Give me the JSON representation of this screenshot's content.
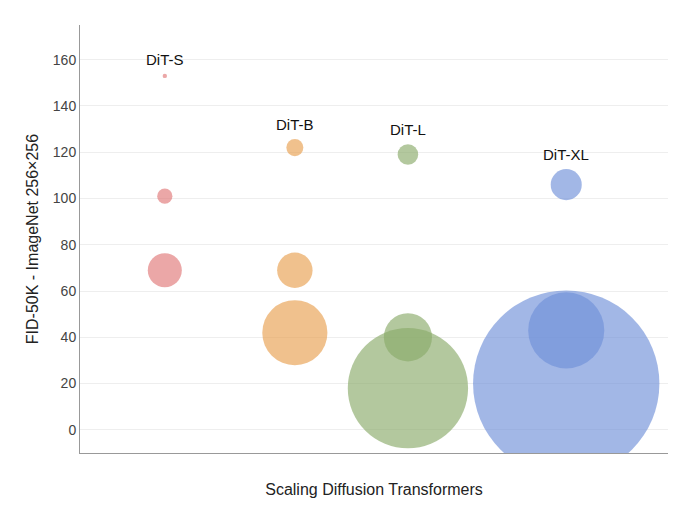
{
  "chart_data": {
    "type": "scatter",
    "xlabel": "Scaling Diffusion Transformers",
    "ylabel": "FID-50K - ImageNet 256×256",
    "xlim": [
      0.3,
      5.5
    ],
    "xticks": [],
    "ylim": [
      -10,
      175
    ],
    "yticks": [
      0,
      20,
      40,
      60,
      80,
      100,
      120,
      140,
      160
    ],
    "grid": true,
    "tick_labels": "y",
    "series": [
      {
        "name": "DiT-S",
        "color": "#e07878",
        "marker": "circle",
        "x": [
          1.05,
          1.05,
          1.05
        ],
        "values": [
          69,
          101,
          153
        ],
        "sizes": [
          600,
          120,
          10
        ]
      },
      {
        "name": "DiT-B",
        "color": "#e8a050",
        "marker": "circle",
        "x": [
          2.2,
          2.2,
          2.2
        ],
        "values": [
          42,
          69,
          122
        ],
        "sizes": [
          2200,
          650,
          150
        ]
      },
      {
        "name": "DiT-L",
        "color": "#8aaa6a",
        "marker": "circle",
        "x": [
          3.2,
          3.2,
          3.2
        ],
        "values": [
          18,
          40,
          119
        ],
        "sizes": [
          7500,
          1200,
          220
        ]
      },
      {
        "name": "DiT-XL",
        "color": "#7090d8",
        "marker": "circle",
        "x": [
          4.6,
          4.6,
          4.6
        ],
        "values": [
          20,
          43,
          106
        ],
        "sizes": [
          18000,
          3000,
          500
        ]
      }
    ]
  }
}
